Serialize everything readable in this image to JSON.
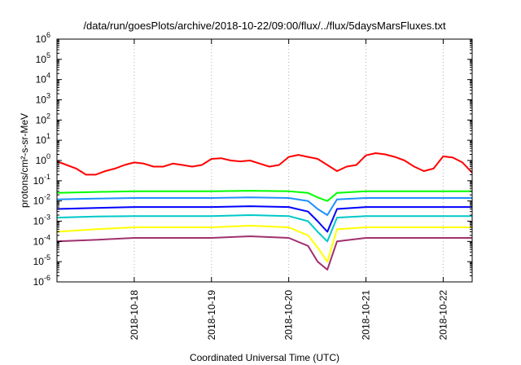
{
  "chart_data": {
    "type": "line",
    "title": "/data/run/goesPlots/archive/2018-10-22/09:00/flux/../flux/5daysMarsFluxes.txt",
    "xlabel": "Coordinated Universal Time (UTC)",
    "ylabel": "protons/cm²-s-sr-MeV",
    "yscale": "log",
    "ylim": [
      1e-06,
      1000000.0
    ],
    "xlim": [
      "2018-10-17 00:00",
      "2018-10-22 09:00"
    ],
    "x_ticks": [
      "2018-10-18",
      "2018-10-19",
      "2018-10-20",
      "2018-10-21",
      "2018-10-22"
    ],
    "y_ticks": [
      {
        "base": "10",
        "exp": "-6"
      },
      {
        "base": "10",
        "exp": "-5"
      },
      {
        "base": "10",
        "exp": "-4"
      },
      {
        "base": "10",
        "exp": "-3"
      },
      {
        "base": "10",
        "exp": "-2"
      },
      {
        "base": "10",
        "exp": "-1"
      },
      {
        "base": "10",
        "exp": "0"
      },
      {
        "base": "10",
        "exp": "1"
      },
      {
        "base": "10",
        "exp": "2"
      },
      {
        "base": "10",
        "exp": "3"
      },
      {
        "base": "10",
        "exp": "4"
      },
      {
        "base": "10",
        "exp": "5"
      },
      {
        "base": "10",
        "exp": "6"
      }
    ],
    "grid": {
      "x": true,
      "y": false,
      "style": "dotted"
    },
    "series": [
      {
        "color": "#ff0000",
        "x": [
          "2018-10-17 00:00",
          "2018-10-17 03:00",
          "2018-10-17 06:00",
          "2018-10-17 09:00",
          "2018-10-17 12:00",
          "2018-10-17 15:00",
          "2018-10-17 18:00",
          "2018-10-17 21:00",
          "2018-10-18 00:00",
          "2018-10-18 03:00",
          "2018-10-18 06:00",
          "2018-10-18 09:00",
          "2018-10-18 12:00",
          "2018-10-18 15:00",
          "2018-10-18 18:00",
          "2018-10-18 21:00",
          "2018-10-19 00:00",
          "2018-10-19 03:00",
          "2018-10-19 06:00",
          "2018-10-19 09:00",
          "2018-10-19 12:00",
          "2018-10-19 15:00",
          "2018-10-19 18:00",
          "2018-10-19 21:00",
          "2018-10-20 00:00",
          "2018-10-20 03:00",
          "2018-10-20 06:00",
          "2018-10-20 09:00",
          "2018-10-20 12:00",
          "2018-10-20 15:00",
          "2018-10-20 18:00",
          "2018-10-20 21:00",
          "2018-10-21 00:00",
          "2018-10-21 03:00",
          "2018-10-21 06:00",
          "2018-10-21 09:00",
          "2018-10-21 12:00",
          "2018-10-21 15:00",
          "2018-10-21 18:00",
          "2018-10-21 21:00",
          "2018-10-22 00:00",
          "2018-10-22 03:00",
          "2018-10-22 06:00",
          "2018-10-22 09:00"
        ],
        "y": [
          0.9,
          0.6,
          0.4,
          0.2,
          0.2,
          0.3,
          0.4,
          0.6,
          0.8,
          0.7,
          0.5,
          0.5,
          0.7,
          0.6,
          0.5,
          0.6,
          1.2,
          1.3,
          1.0,
          0.9,
          1.0,
          0.7,
          0.5,
          0.6,
          1.5,
          1.9,
          1.5,
          1.2,
          0.6,
          0.3,
          0.5,
          0.6,
          1.8,
          2.3,
          2.0,
          1.5,
          1.0,
          0.5,
          0.3,
          0.4,
          1.6,
          1.4,
          0.8,
          0.25
        ]
      },
      {
        "color": "#00ff00",
        "x": [
          "2018-10-17 00:00",
          "2018-10-17 12:00",
          "2018-10-18 00:00",
          "2018-10-18 12:00",
          "2018-10-19 00:00",
          "2018-10-19 12:00",
          "2018-10-20 00:00",
          "2018-10-20 06:00",
          "2018-10-20 09:00",
          "2018-10-20 12:00",
          "2018-10-20 15:00",
          "2018-10-21 00:00",
          "2018-10-21 12:00",
          "2018-10-22 00:00",
          "2018-10-22 09:00"
        ],
        "y": [
          0.025,
          0.028,
          0.03,
          0.03,
          0.03,
          0.032,
          0.03,
          0.025,
          0.015,
          0.01,
          0.025,
          0.03,
          0.03,
          0.03,
          0.03
        ]
      },
      {
        "color": "#1e90ff",
        "x": [
          "2018-10-17 00:00",
          "2018-10-17 12:00",
          "2018-10-18 00:00",
          "2018-10-18 12:00",
          "2018-10-19 00:00",
          "2018-10-19 12:00",
          "2018-10-20 00:00",
          "2018-10-20 06:00",
          "2018-10-20 09:00",
          "2018-10-20 12:00",
          "2018-10-20 15:00",
          "2018-10-21 00:00",
          "2018-10-21 12:00",
          "2018-10-22 00:00",
          "2018-10-22 09:00"
        ],
        "y": [
          0.012,
          0.013,
          0.014,
          0.014,
          0.014,
          0.015,
          0.014,
          0.01,
          0.004,
          0.002,
          0.012,
          0.014,
          0.014,
          0.014,
          0.014
        ]
      },
      {
        "color": "#0000ff",
        "x": [
          "2018-10-17 00:00",
          "2018-10-17 12:00",
          "2018-10-18 00:00",
          "2018-10-18 12:00",
          "2018-10-19 00:00",
          "2018-10-19 12:00",
          "2018-10-20 00:00",
          "2018-10-20 06:00",
          "2018-10-20 09:00",
          "2018-10-20 12:00",
          "2018-10-20 15:00",
          "2018-10-21 00:00",
          "2018-10-21 12:00",
          "2018-10-22 00:00",
          "2018-10-22 09:00"
        ],
        "y": [
          0.004,
          0.0045,
          0.005,
          0.005,
          0.005,
          0.0055,
          0.005,
          0.003,
          0.001,
          0.0003,
          0.004,
          0.005,
          0.005,
          0.005,
          0.005
        ]
      },
      {
        "color": "#00c8c8",
        "x": [
          "2018-10-17 00:00",
          "2018-10-17 12:00",
          "2018-10-18 00:00",
          "2018-10-18 12:00",
          "2018-10-19 00:00",
          "2018-10-19 12:00",
          "2018-10-20 00:00",
          "2018-10-20 06:00",
          "2018-10-20 09:00",
          "2018-10-20 12:00",
          "2018-10-20 15:00",
          "2018-10-21 00:00",
          "2018-10-21 12:00",
          "2018-10-22 00:00",
          "2018-10-22 09:00"
        ],
        "y": [
          0.0015,
          0.0017,
          0.0018,
          0.0018,
          0.0018,
          0.002,
          0.0018,
          0.001,
          0.0003,
          0.0001,
          0.0015,
          0.0018,
          0.0018,
          0.0018,
          0.0018
        ]
      },
      {
        "color": "#ffff00",
        "x": [
          "2018-10-17 00:00",
          "2018-10-17 12:00",
          "2018-10-18 00:00",
          "2018-10-18 12:00",
          "2018-10-19 00:00",
          "2018-10-19 12:00",
          "2018-10-20 00:00",
          "2018-10-20 06:00",
          "2018-10-20 09:00",
          "2018-10-20 12:00",
          "2018-10-20 15:00",
          "2018-10-21 00:00",
          "2018-10-21 12:00",
          "2018-10-22 00:00",
          "2018-10-22 09:00"
        ],
        "y": [
          0.0003,
          0.0004,
          0.0005,
          0.0005,
          0.0005,
          0.0006,
          0.0005,
          0.0002,
          5e-05,
          1e-05,
          0.0004,
          0.0005,
          0.0005,
          0.0005,
          0.0005
        ]
      },
      {
        "color": "#a0306e",
        "x": [
          "2018-10-17 00:00",
          "2018-10-17 12:00",
          "2018-10-18 00:00",
          "2018-10-18 12:00",
          "2018-10-19 00:00",
          "2018-10-19 12:00",
          "2018-10-20 00:00",
          "2018-10-20 06:00",
          "2018-10-20 09:00",
          "2018-10-20 12:00",
          "2018-10-20 15:00",
          "2018-10-21 00:00",
          "2018-10-21 12:00",
          "2018-10-22 00:00",
          "2018-10-22 09:00"
        ],
        "y": [
          0.0001,
          0.00012,
          0.00015,
          0.00015,
          0.00015,
          0.00018,
          0.00015,
          6e-05,
          1e-05,
          4e-06,
          0.0001,
          0.00015,
          0.00015,
          0.00015,
          0.00015
        ]
      }
    ]
  }
}
